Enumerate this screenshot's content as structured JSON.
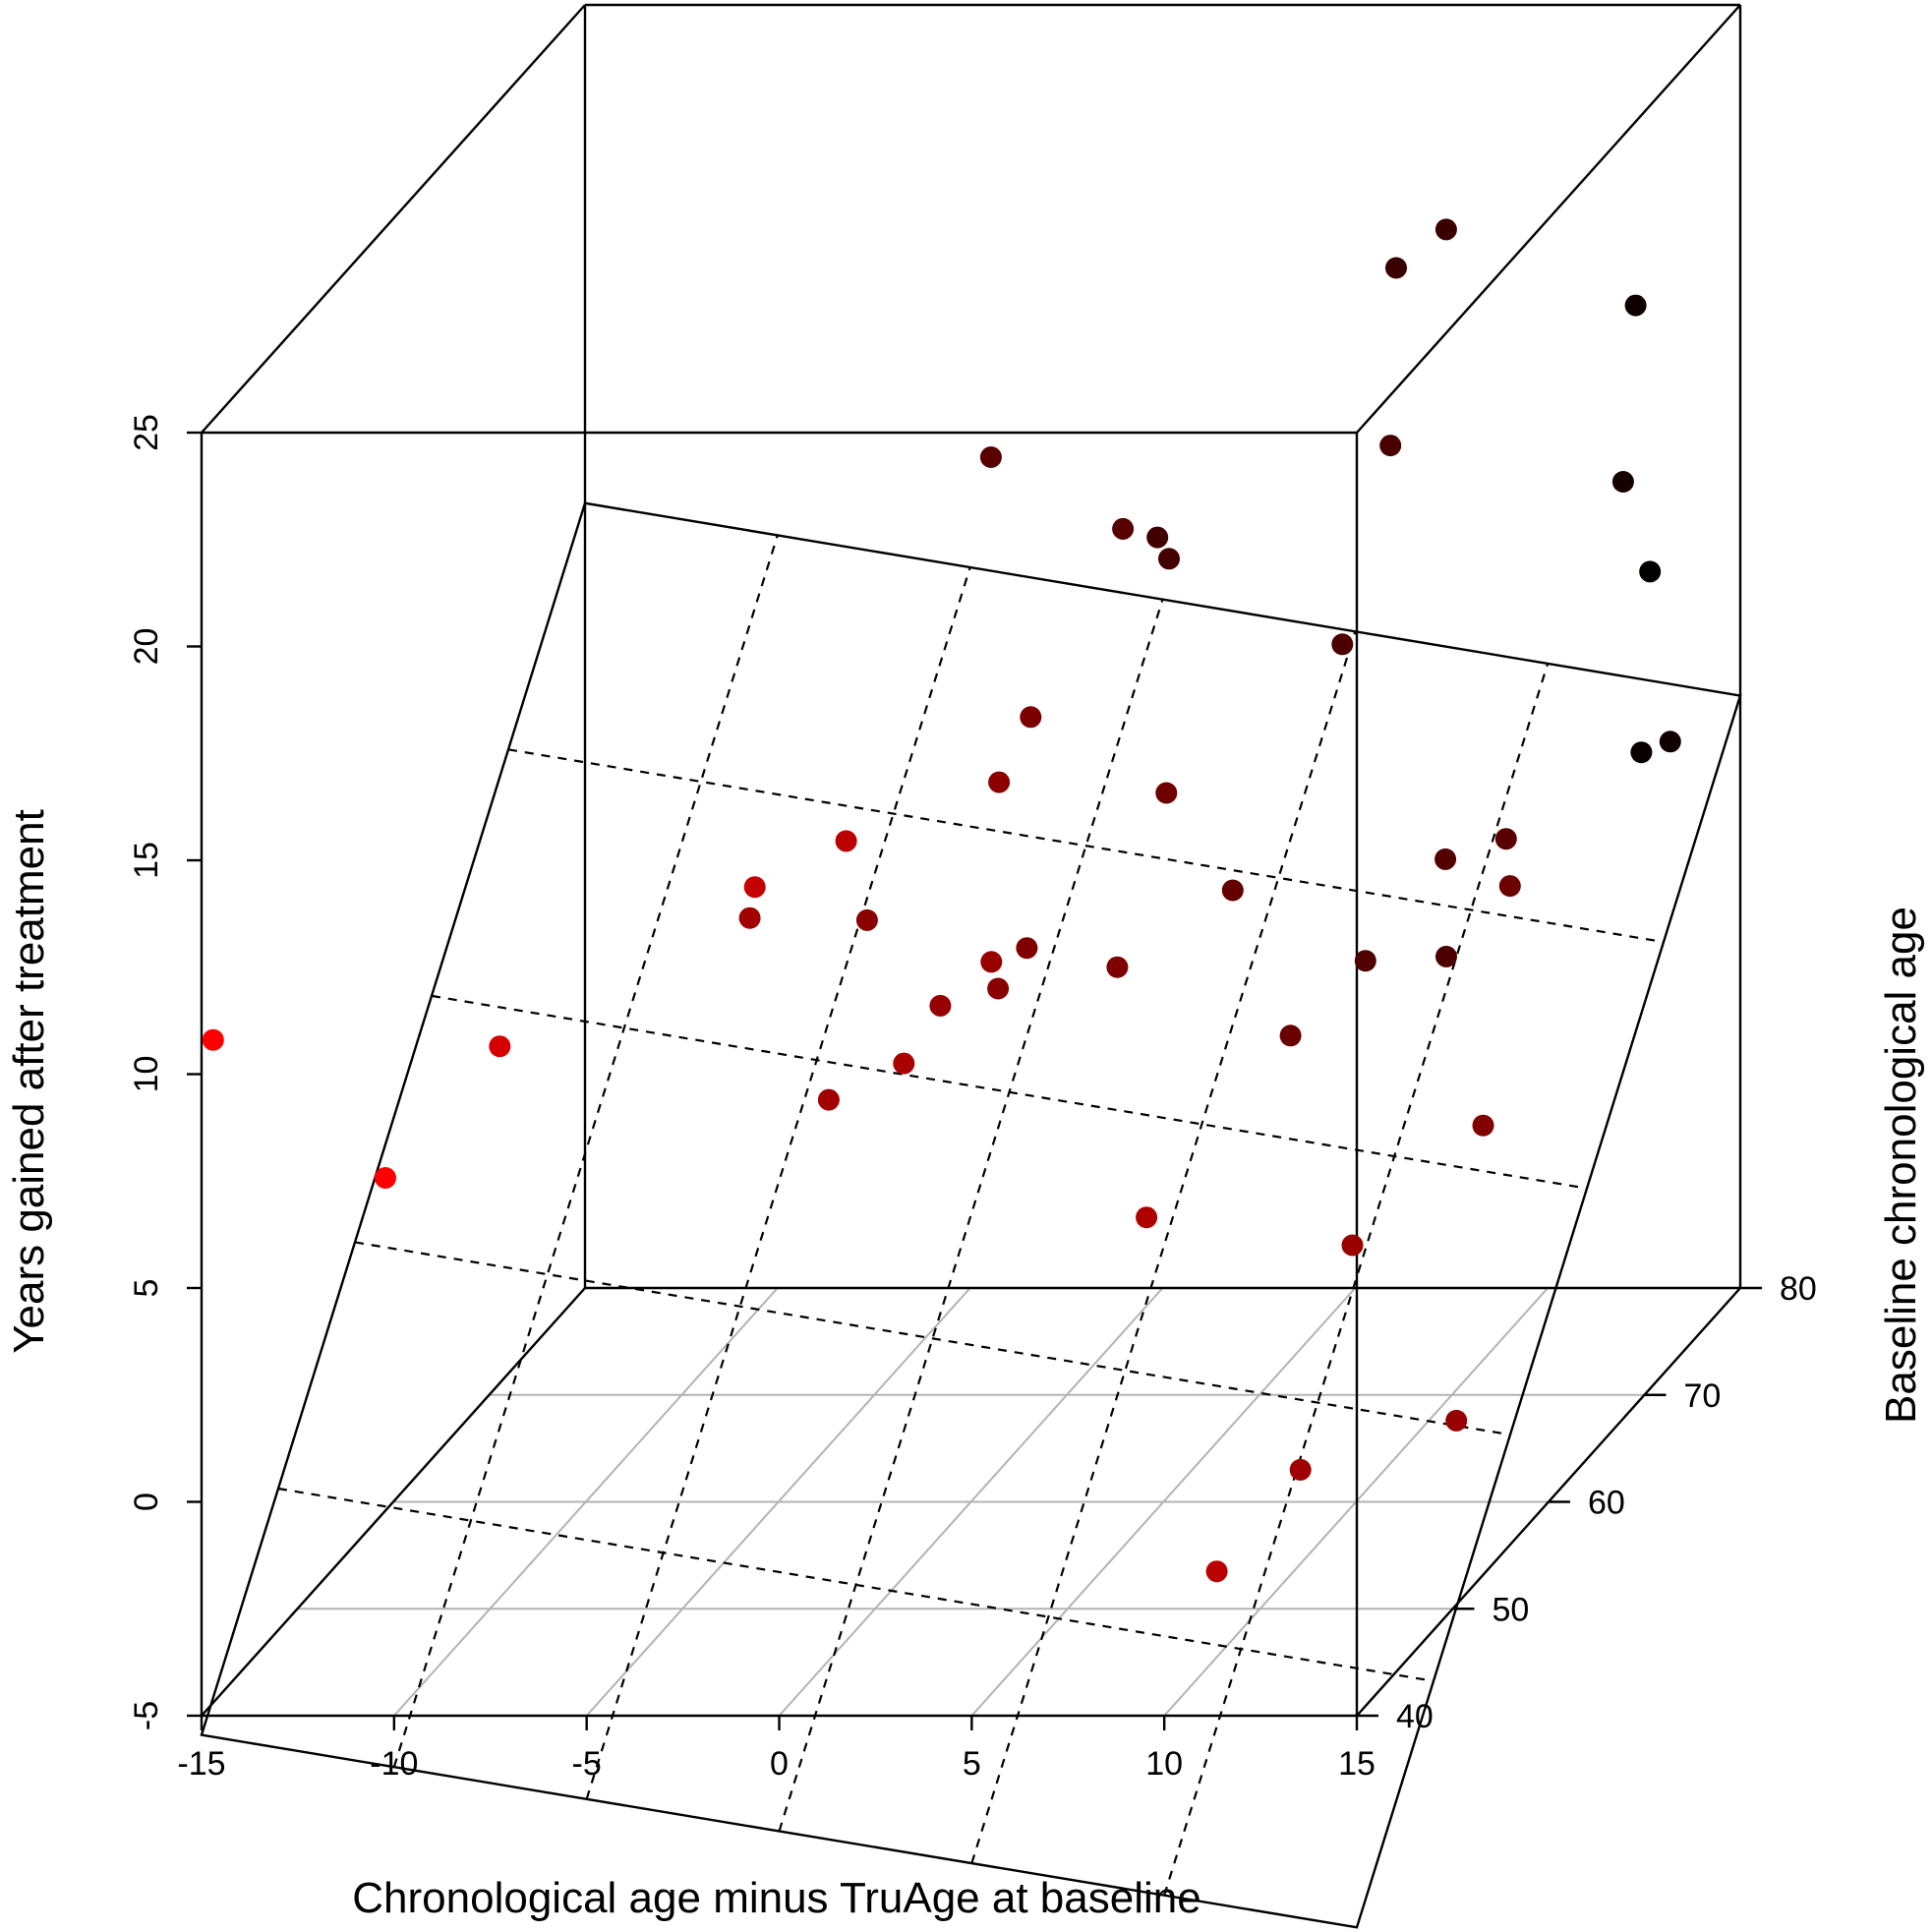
{
  "chart_data": {
    "type": "scatter3d",
    "xlabel": "Chronological age minus TruAge at baseline",
    "ylabel": "Baseline chronological age",
    "zlabel": "Years gained after treatment",
    "xlim": [
      -15,
      15
    ],
    "ylim": [
      40,
      80
    ],
    "zlim": [
      -5,
      25
    ],
    "x_ticks": [
      "-15",
      "-10",
      "-5",
      "0",
      "5",
      "10",
      "15"
    ],
    "y_ticks": [
      "40",
      "50",
      "60",
      "70",
      "80"
    ],
    "z_ticks": [
      "-5",
      "0",
      "5",
      "10",
      "15",
      "20",
      "25"
    ],
    "regression_plane": {
      "intercept": -26.5,
      "slope_x": -0.15,
      "slope_y": 0.47
    },
    "colors": {
      "point_young": "#ff0000",
      "point_old": "#000000",
      "floor_grid": "#b3b3b3",
      "plane": "#000000"
    },
    "points": [
      {
        "x": -14.7,
        "y": 40.0,
        "z": 10.8
      },
      {
        "x": -10.3,
        "y": 40.3,
        "z": 7.5
      },
      {
        "x": -8.7,
        "y": 45.8,
        "z": 9.2
      },
      {
        "x": -3.9,
        "y": 52.6,
        "z": 10.5
      },
      {
        "x": -2.6,
        "y": 47.9,
        "z": 12.4
      },
      {
        "x": -1.9,
        "y": 52.8,
        "z": 6.2
      },
      {
        "x": -1.7,
        "y": 56.0,
        "z": 9.6
      },
      {
        "x": -0.6,
        "y": 49.4,
        "z": 13.1
      },
      {
        "x": 0.3,
        "y": 51.8,
        "z": 7.3
      },
      {
        "x": 0.6,
        "y": 54.4,
        "z": 8.0
      },
      {
        "x": 2.0,
        "y": 54.1,
        "z": 9.1
      },
      {
        "x": 1.6,
        "y": 56.4,
        "z": 7.9
      },
      {
        "x": 2.1,
        "y": 57.8,
        "z": 13.9
      },
      {
        "x": 1.8,
        "y": 55.7,
        "z": 12.9
      },
      {
        "x": -0.2,
        "y": 62.9,
        "z": 18.7
      },
      {
        "x": 3.2,
        "y": 63.0,
        "z": 17.0
      },
      {
        "x": 3.3,
        "y": 66.2,
        "z": 16.0
      },
      {
        "x": 2.1,
        "y": 57.4,
        "z": 8.6
      },
      {
        "x": 3.7,
        "y": 65.8,
        "z": 15.6
      },
      {
        "x": 4.4,
        "y": 57.6,
        "z": 8.1
      },
      {
        "x": 6.8,
        "y": 51.0,
        "z": 3.9
      },
      {
        "x": 5.1,
        "y": 59.9,
        "z": 11.6
      },
      {
        "x": 6.5,
        "y": 61.2,
        "z": 9.0
      },
      {
        "x": 8.5,
        "y": 64.6,
        "z": 13.9
      },
      {
        "x": 9.3,
        "y": 67.0,
        "z": 22.1
      },
      {
        "x": 8.2,
        "y": 60.4,
        "z": 5.8
      },
      {
        "x": 9.7,
        "y": 64.8,
        "z": 18.5
      },
      {
        "x": 9.0,
        "y": 49.5,
        "z": -4.0
      },
      {
        "x": 9.2,
        "y": 64.2,
        "z": 6.6
      },
      {
        "x": 10.6,
        "y": 67.0,
        "z": 23.0
      },
      {
        "x": 11.2,
        "y": 64.6,
        "z": 6.6
      },
      {
        "x": 10.3,
        "y": 53.0,
        "z": -2.5
      },
      {
        "x": 11.5,
        "y": 63.3,
        "z": 9.2
      },
      {
        "x": 11.4,
        "y": 54.0,
        "z": 2.5
      },
      {
        "x": 13.2,
        "y": 62.8,
        "z": 9.8
      },
      {
        "x": 14.0,
        "y": 57.2,
        "z": 4.5
      },
      {
        "x": 14.0,
        "y": 54.4,
        "z": -1.7
      },
      {
        "x": 14.0,
        "y": 60.0,
        "z": 9.4
      },
      {
        "x": 14.0,
        "y": 73.1,
        "z": 19.7
      },
      {
        "x": 14.0,
        "y": 71.8,
        "z": 15.9
      },
      {
        "x": 14.0,
        "y": 73.7,
        "z": 9.1
      },
      {
        "x": 15.0,
        "y": 72.7,
        "z": 9.6
      },
      {
        "x": 14.0,
        "y": 74.6,
        "z": 13.1
      }
    ]
  }
}
